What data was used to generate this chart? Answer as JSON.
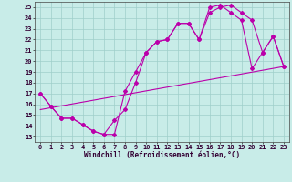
{
  "xlabel": "Windchill (Refroidissement éolien,°C)",
  "bg_color": "#c8ece8",
  "grid_color": "#9fcfca",
  "line_color": "#bb00aa",
  "xlim": [
    -0.5,
    23.5
  ],
  "ylim": [
    12.5,
    25.5
  ],
  "xticks": [
    0,
    1,
    2,
    3,
    4,
    5,
    6,
    7,
    8,
    9,
    10,
    11,
    12,
    13,
    14,
    15,
    16,
    17,
    18,
    19,
    20,
    21,
    22,
    23
  ],
  "yticks": [
    13,
    14,
    15,
    16,
    17,
    18,
    19,
    20,
    21,
    22,
    23,
    24,
    25
  ],
  "line1_x": [
    0,
    1,
    2,
    3,
    4,
    5,
    6,
    7,
    8,
    9,
    10,
    11,
    12,
    13,
    14,
    15,
    16,
    17,
    18,
    19,
    20,
    21,
    22,
    23
  ],
  "line1_y": [
    17.0,
    15.8,
    14.7,
    14.7,
    14.1,
    13.5,
    13.2,
    13.2,
    17.2,
    19.0,
    20.8,
    21.8,
    22.0,
    23.5,
    23.5,
    22.0,
    25.0,
    25.2,
    24.5,
    23.8,
    19.3,
    20.8,
    22.3,
    19.5
  ],
  "line2_x": [
    0,
    1,
    2,
    3,
    4,
    5,
    6,
    7,
    8,
    9,
    10,
    11,
    12,
    13,
    14,
    15,
    16,
    17,
    18,
    19,
    20,
    21,
    22,
    23
  ],
  "line2_y": [
    17.0,
    15.8,
    14.7,
    14.7,
    14.1,
    13.5,
    13.2,
    14.5,
    15.5,
    18.0,
    20.8,
    21.8,
    22.0,
    23.5,
    23.5,
    22.0,
    24.5,
    25.0,
    25.2,
    24.5,
    23.8,
    20.8,
    22.3,
    19.5
  ],
  "line3_x": [
    0,
    23
  ],
  "line3_y": [
    15.5,
    19.5
  ],
  "marker_size": 2.0,
  "linewidth": 0.8,
  "xlabel_fontsize": 5.5,
  "tick_fontsize": 5.0,
  "figsize": [
    3.2,
    2.0
  ],
  "dpi": 100
}
